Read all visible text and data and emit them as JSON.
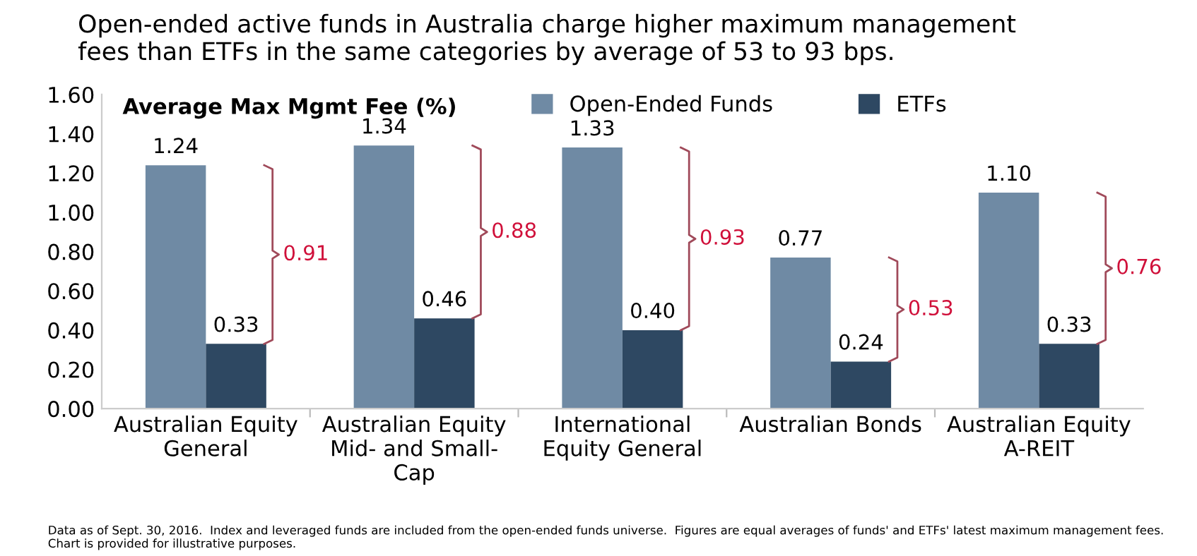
{
  "chart_data": {
    "type": "bar",
    "title": "Open-ended active funds in Australia charge higher maximum management\nfees than ETFs in the same categories by average of 53 to 93 bps.",
    "ylabel": "Average Max Mgmt Fee (%)",
    "categories": [
      "Australian Equity\nGeneral",
      "Australian Equity\nMid- and Small-\nCap",
      "International\nEquity General",
      "Australian Bonds",
      "Australian Equity\nA-REIT"
    ],
    "series": [
      {
        "name": "Open-Ended Funds",
        "color": "#6f8aa4",
        "values": [
          1.24,
          1.34,
          1.33,
          0.77,
          1.1
        ],
        "value_labels": [
          "1.24",
          "1.34",
          "1.33",
          "0.77",
          "1.10"
        ]
      },
      {
        "name": "ETFs",
        "color": "#2e4862",
        "values": [
          0.33,
          0.46,
          0.4,
          0.24,
          0.33
        ],
        "value_labels": [
          "0.33",
          "0.46",
          "0.40",
          "0.24",
          "0.33"
        ]
      }
    ],
    "ylim": [
      0,
      1.6
    ],
    "yticks": [
      {
        "value": 0,
        "label": "0.00"
      },
      {
        "value": 0.2,
        "label": "0.20"
      },
      {
        "value": 0.4,
        "label": "0.40"
      },
      {
        "value": 0.6,
        "label": "0.60"
      },
      {
        "value": 0.8,
        "label": "0.80"
      },
      {
        "value": 1.0,
        "label": "1.00"
      },
      {
        "value": 1.2,
        "label": "1.20"
      },
      {
        "value": 1.4,
        "label": "1.40"
      },
      {
        "value": 1.6,
        "label": "1.60"
      }
    ],
    "legend": "top",
    "grid": false,
    "annotations": [
      "0.91",
      "0.88",
      "0.93",
      "0.53",
      "0.76",
      "Data as of Sept. 30, 2016.  Index and leveraged funds are included from the open-ended funds universe.  Figures are equal averages of funds' and ETFs' latest maximum management fees.  Chart is provided for illustrative purposes."
    ]
  }
}
